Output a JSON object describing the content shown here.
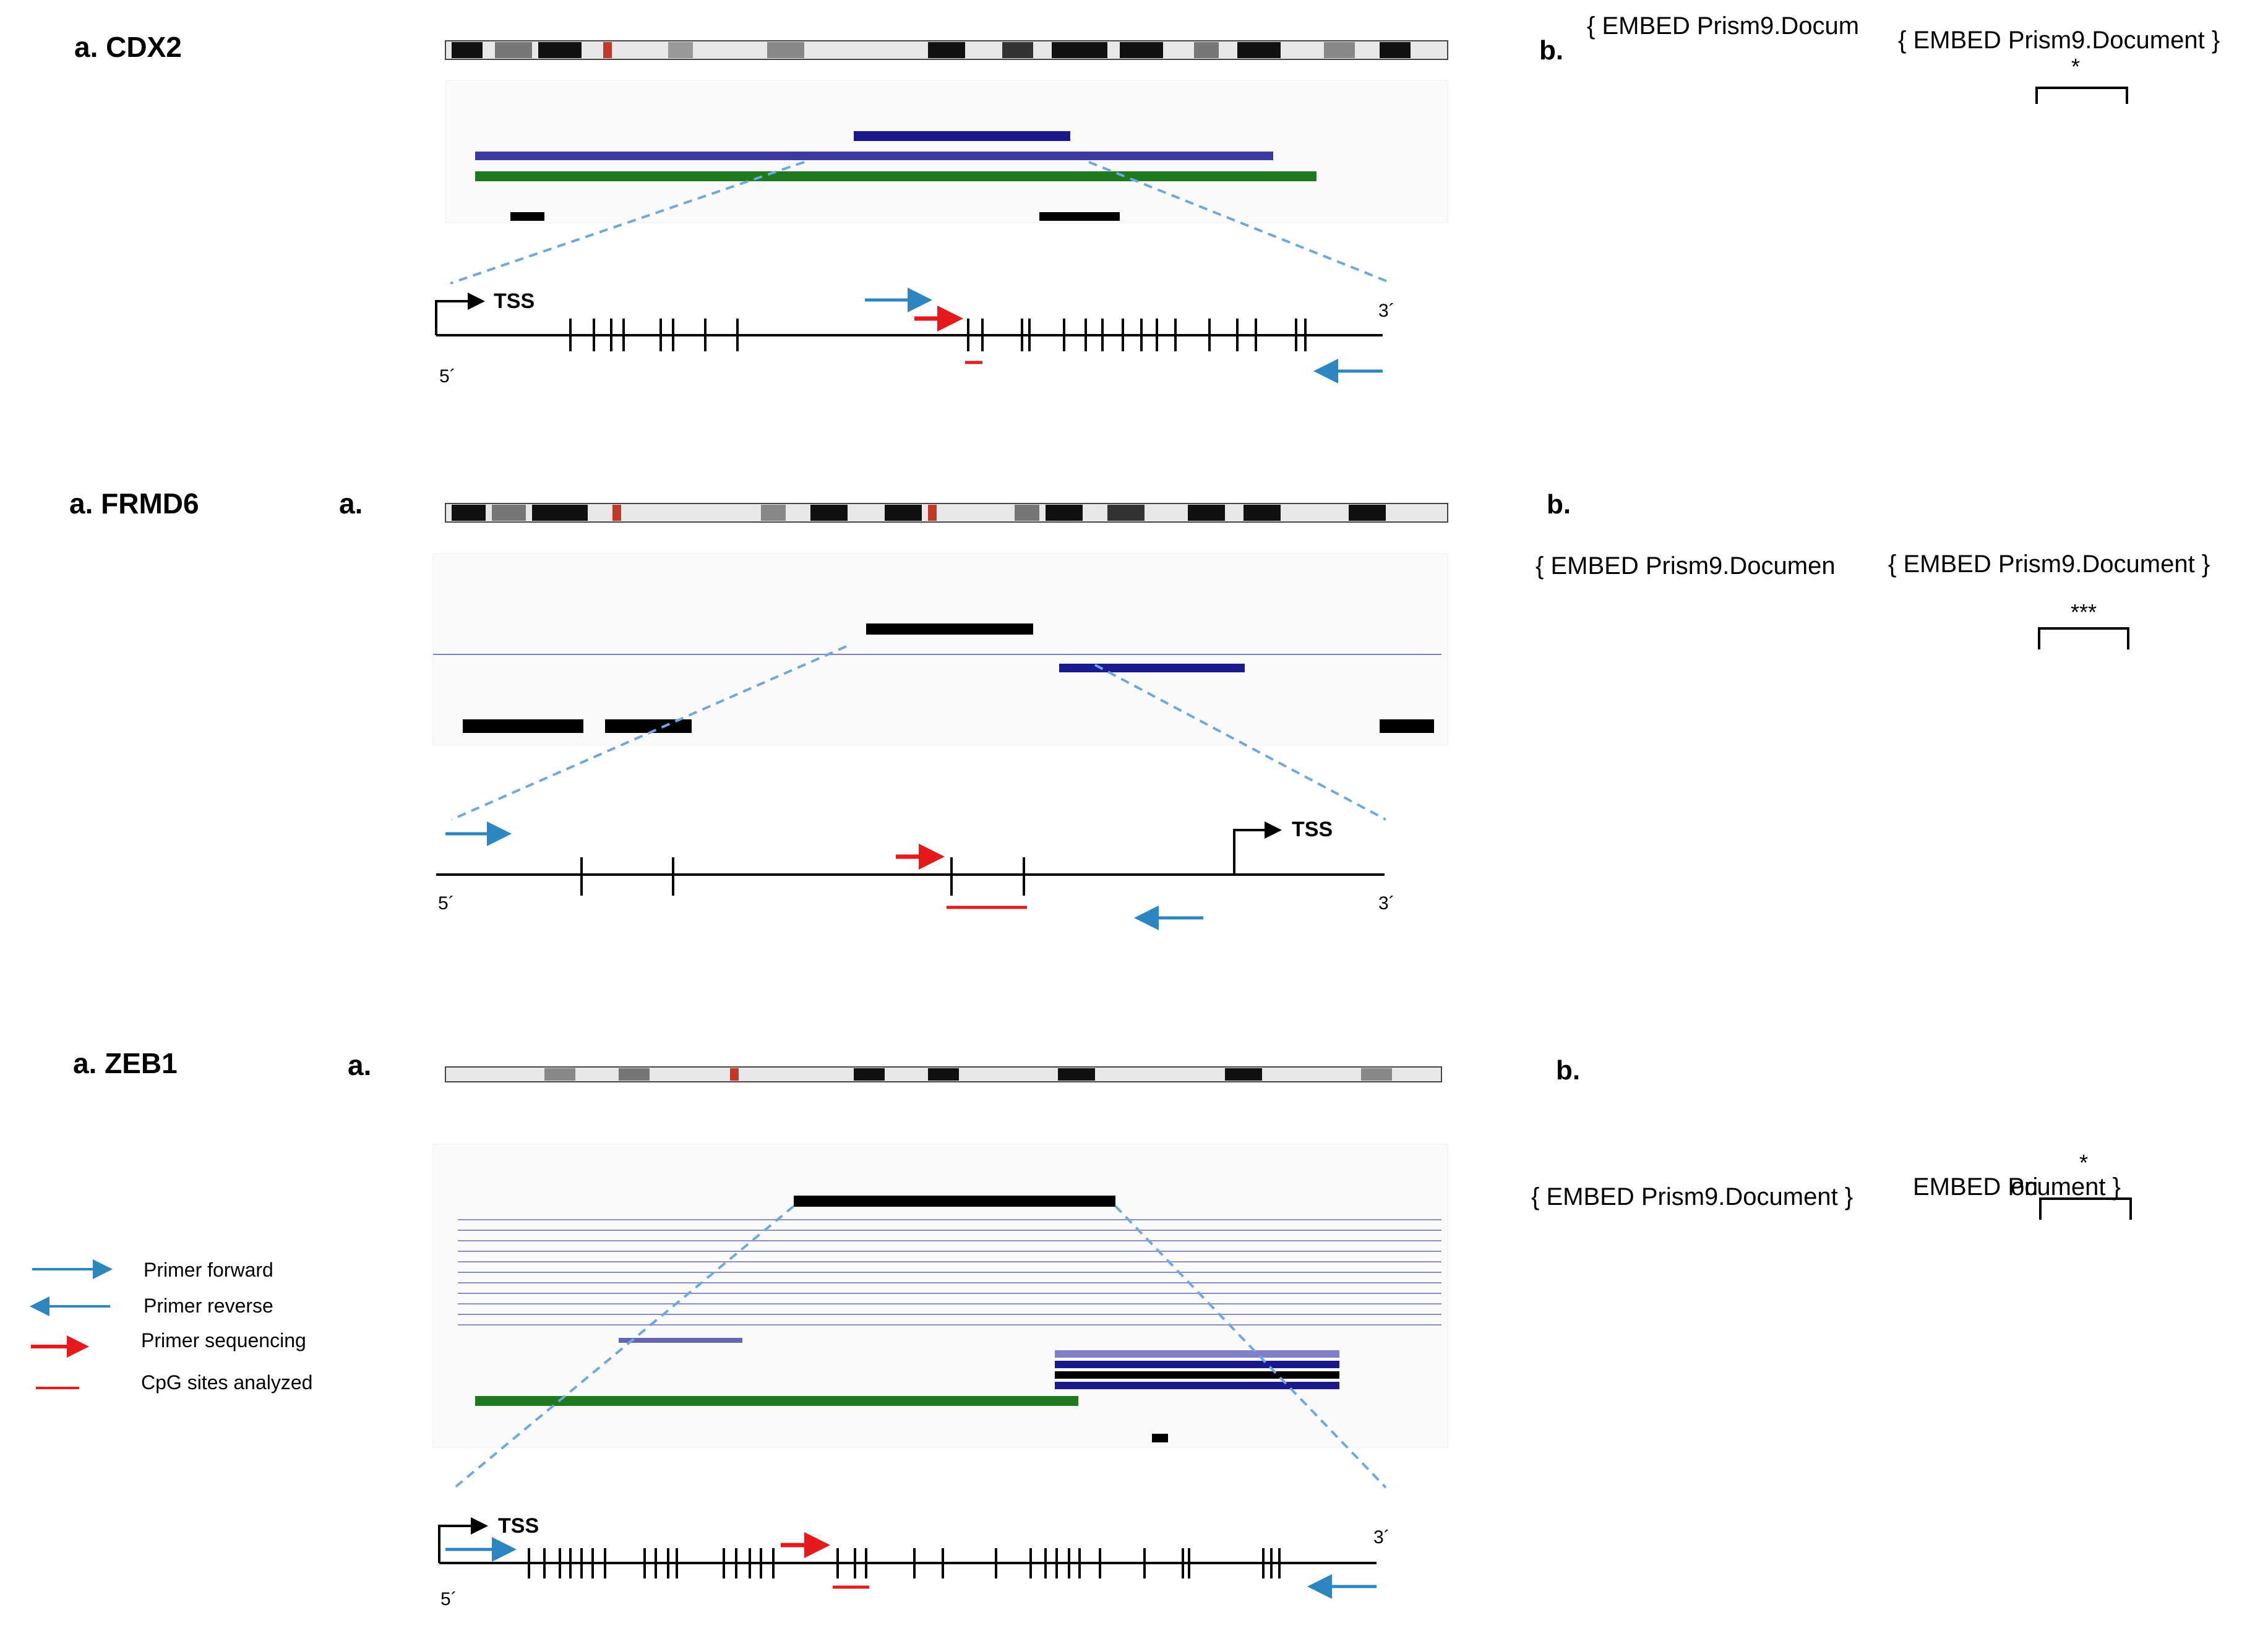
{
  "panels": [
    {
      "id": "cdx2",
      "gene_label": "a.  CDX2",
      "sub_a_label": "",
      "b_label": "b.",
      "embeds": [
        "{ EMBED Prism9.Docum",
        "{ EMBED Prism9.Document }"
      ],
      "significance": "*",
      "diagram": {
        "tss": "TSS",
        "five_prime": "5´",
        "three_prime": "3´"
      }
    },
    {
      "id": "frmd6",
      "gene_label": "a. FRMD6",
      "sub_a_label": "a.",
      "b_label": "b.",
      "embeds": [
        "{ EMBED Prism9.Documen",
        "{ EMBED Prism9.Document }"
      ],
      "significance": "***",
      "diagram": {
        "tss": "TSS",
        "five_prime": "5´",
        "three_prime": "3´"
      }
    },
    {
      "id": "zeb1",
      "gene_label": "a. ZEB1",
      "sub_a_label": "a.",
      "b_label": "b.",
      "embeds": [
        "{ EMBED Prism9.Document }",
        "EMBED Pri",
        "ocument }"
      ],
      "significance": "*",
      "diagram": {
        "tss": "TSS",
        "five_prime": "5´",
        "three_prime": "3´"
      }
    }
  ],
  "legend": {
    "items": [
      {
        "label": "Primer forward",
        "icon": "blue-right-arrow",
        "color": "#2e86c1"
      },
      {
        "label": "Primer reverse",
        "icon": "blue-left-arrow",
        "color": "#2e86c1"
      },
      {
        "label": "Primer sequencing",
        "icon": "red-right-arrow",
        "color": "#e41a1c"
      },
      {
        "label": "CpG sites analyzed",
        "icon": "red-line",
        "color": "#e41a1c"
      }
    ]
  },
  "colors": {
    "primer_blue": "#2e86c1",
    "primer_red": "#e41a1c",
    "gene_navy": "#1a1a8c",
    "cpg_green": "#1f7a1f",
    "zoom_dash": "#6fa8dc"
  }
}
